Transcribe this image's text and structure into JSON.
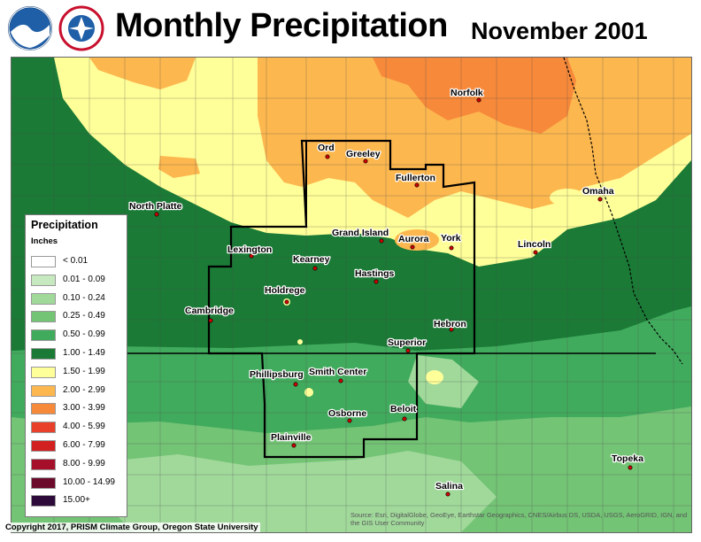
{
  "header": {
    "title": "Monthly Precipitation",
    "date": "November 2001",
    "logos": [
      "noaa-logo",
      "nws-logo"
    ]
  },
  "legend": {
    "title": "Precipitation",
    "units": "Inches",
    "items": [
      {
        "label": "< 0.01",
        "color": "#ffffff"
      },
      {
        "label": "0.01 - 0.09",
        "color": "#c7e9c0"
      },
      {
        "label": "0.10 - 0.24",
        "color": "#a1d99b"
      },
      {
        "label": "0.25 - 0.49",
        "color": "#74c476"
      },
      {
        "label": "0.50 - 0.99",
        "color": "#41ab5d"
      },
      {
        "label": "1.00 - 1.49",
        "color": "#1a7a36"
      },
      {
        "label": "1.50 - 1.99",
        "color": "#ffff99"
      },
      {
        "label": "2.00 - 2.99",
        "color": "#fdb74f"
      },
      {
        "label": "3.00 - 3.99",
        "color": "#f7893a"
      },
      {
        "label": "4.00 - 5.99",
        "color": "#e8402a"
      },
      {
        "label": "6.00 - 7.99",
        "color": "#d21f1f"
      },
      {
        "label": "8.00 - 9.99",
        "color": "#a50f2a"
      },
      {
        "label": "10.00 - 14.99",
        "color": "#6b0a2a"
      },
      {
        "label": "15.00+",
        "color": "#2d0a3a"
      }
    ]
  },
  "cities": [
    {
      "name": "Ord"
    },
    {
      "name": "Greeley"
    },
    {
      "name": "Norfolk"
    },
    {
      "name": "Fullerton"
    },
    {
      "name": "Omaha"
    },
    {
      "name": "North Platte"
    },
    {
      "name": "Grand Island"
    },
    {
      "name": "Aurora"
    },
    {
      "name": "York"
    },
    {
      "name": "Lincoln"
    },
    {
      "name": "Lexington"
    },
    {
      "name": "Kearney"
    },
    {
      "name": "Hastings"
    },
    {
      "name": "Holdrege"
    },
    {
      "name": "Cambridge"
    },
    {
      "name": "Hebron"
    },
    {
      "name": "Superior"
    },
    {
      "name": "Phillipsburg"
    },
    {
      "name": "Smith Center"
    },
    {
      "name": "Osborne"
    },
    {
      "name": "Beloit"
    },
    {
      "name": "Plainville"
    },
    {
      "name": "Topeka"
    },
    {
      "name": "Salina"
    }
  ],
  "footer": {
    "copyright": "Copyright 2017, PRISM Climate Group, Oregon State University",
    "source": "Source: Esri, DigitalGlobe, GeoEye, Earthstar Geographics, CNES/Airbus DS, USDA, USGS, AeroGRID, IGN, and the GIS User Community"
  }
}
